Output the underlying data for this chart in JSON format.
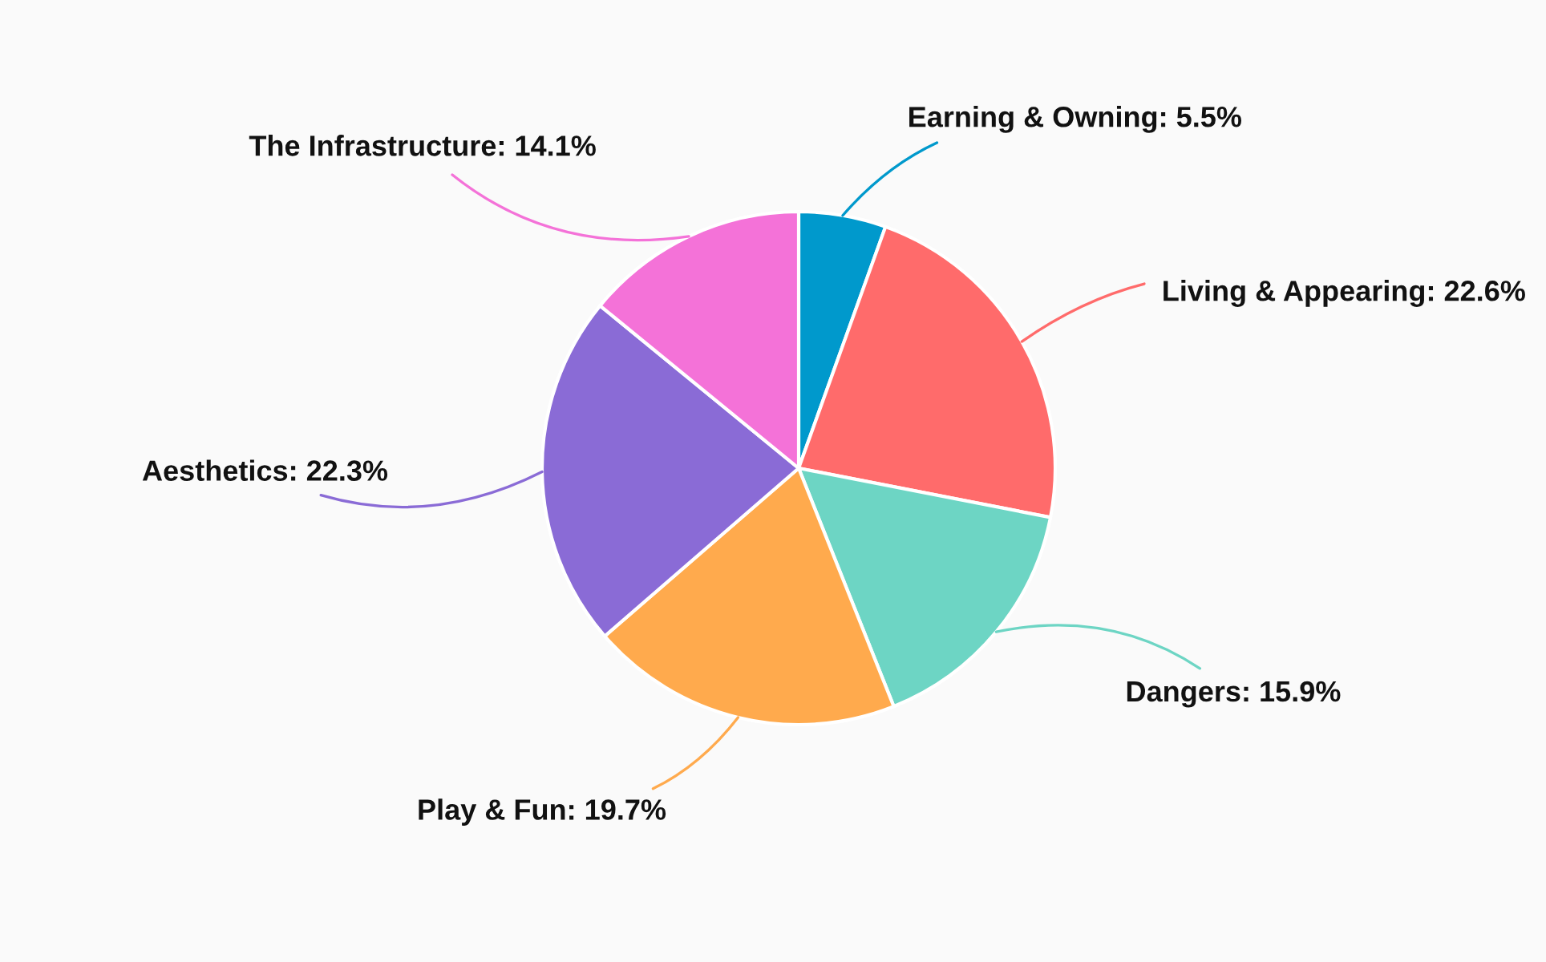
{
  "chart_data": {
    "type": "pie",
    "categories": [
      "Earning & Owning",
      "Living & Appearing",
      "Dangers",
      "Play & Fun",
      "Aesthetics",
      "The Infrastructure"
    ],
    "values": [
      5.5,
      22.6,
      15.9,
      19.7,
      22.3,
      14.1
    ],
    "value_labels": [
      "5.5%",
      "22.6%",
      "15.9%",
      "19.7%",
      "22.3%",
      "14.1%"
    ],
    "colors": [
      "#0099cc",
      "#ff6b6b",
      "#6dd5c4",
      "#ffaa4d",
      "#8a6bd6",
      "#f472d8"
    ],
    "legend": false
  }
}
